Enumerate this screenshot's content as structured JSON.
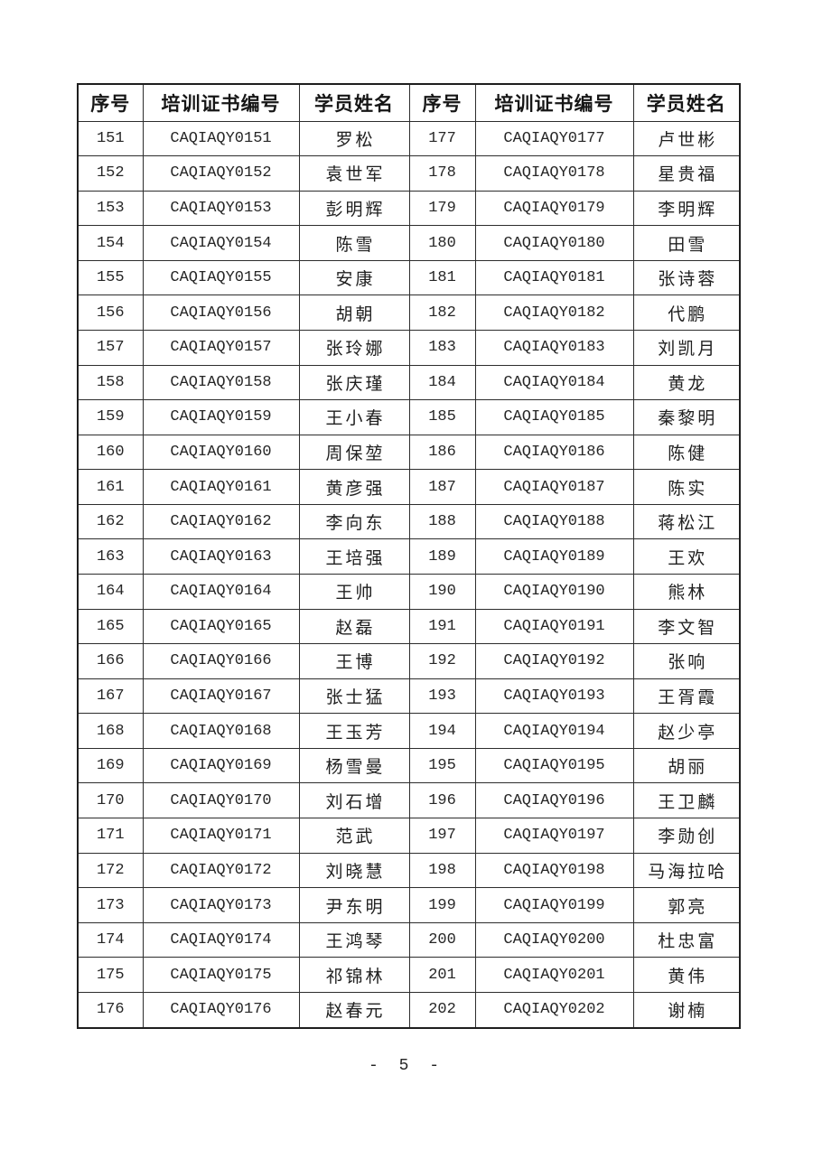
{
  "page": {
    "footer_page_number": "- 5 -"
  },
  "table": {
    "headers": [
      "序号",
      "培训证书编号",
      "学员姓名",
      "序号",
      "培训证书编号",
      "学员姓名"
    ],
    "left_rows": [
      {
        "no": "151",
        "cert": "CAQIAQY0151",
        "name": "罗松"
      },
      {
        "no": "152",
        "cert": "CAQIAQY0152",
        "name": "袁世军"
      },
      {
        "no": "153",
        "cert": "CAQIAQY0153",
        "name": "彭明辉"
      },
      {
        "no": "154",
        "cert": "CAQIAQY0154",
        "name": "陈雪"
      },
      {
        "no": "155",
        "cert": "CAQIAQY0155",
        "name": "安康"
      },
      {
        "no": "156",
        "cert": "CAQIAQY0156",
        "name": "胡朝"
      },
      {
        "no": "157",
        "cert": "CAQIAQY0157",
        "name": "张玲娜"
      },
      {
        "no": "158",
        "cert": "CAQIAQY0158",
        "name": "张庆瑾"
      },
      {
        "no": "159",
        "cert": "CAQIAQY0159",
        "name": "王小春"
      },
      {
        "no": "160",
        "cert": "CAQIAQY0160",
        "name": "周保堃"
      },
      {
        "no": "161",
        "cert": "CAQIAQY0161",
        "name": "黄彦强"
      },
      {
        "no": "162",
        "cert": "CAQIAQY0162",
        "name": "李向东"
      },
      {
        "no": "163",
        "cert": "CAQIAQY0163",
        "name": "王培强"
      },
      {
        "no": "164",
        "cert": "CAQIAQY0164",
        "name": "王帅"
      },
      {
        "no": "165",
        "cert": "CAQIAQY0165",
        "name": "赵磊"
      },
      {
        "no": "166",
        "cert": "CAQIAQY0166",
        "name": "王博"
      },
      {
        "no": "167",
        "cert": "CAQIAQY0167",
        "name": "张士猛"
      },
      {
        "no": "168",
        "cert": "CAQIAQY0168",
        "name": "王玉芳"
      },
      {
        "no": "169",
        "cert": "CAQIAQY0169",
        "name": "杨雪曼"
      },
      {
        "no": "170",
        "cert": "CAQIAQY0170",
        "name": "刘石增"
      },
      {
        "no": "171",
        "cert": "CAQIAQY0171",
        "name": "范武"
      },
      {
        "no": "172",
        "cert": "CAQIAQY0172",
        "name": "刘晓慧"
      },
      {
        "no": "173",
        "cert": "CAQIAQY0173",
        "name": "尹东明"
      },
      {
        "no": "174",
        "cert": "CAQIAQY0174",
        "name": "王鸿琴"
      },
      {
        "no": "175",
        "cert": "CAQIAQY0175",
        "name": "祁锦林"
      },
      {
        "no": "176",
        "cert": "CAQIAQY0176",
        "name": "赵春元"
      }
    ],
    "right_rows": [
      {
        "no": "177",
        "cert": "CAQIAQY0177",
        "name": "卢世彬"
      },
      {
        "no": "178",
        "cert": "CAQIAQY0178",
        "name": "星贵福"
      },
      {
        "no": "179",
        "cert": "CAQIAQY0179",
        "name": "李明辉"
      },
      {
        "no": "180",
        "cert": "CAQIAQY0180",
        "name": "田雪"
      },
      {
        "no": "181",
        "cert": "CAQIAQY0181",
        "name": "张诗蓉"
      },
      {
        "no": "182",
        "cert": "CAQIAQY0182",
        "name": "代鹏"
      },
      {
        "no": "183",
        "cert": "CAQIAQY0183",
        "name": "刘凯月"
      },
      {
        "no": "184",
        "cert": "CAQIAQY0184",
        "name": "黄龙"
      },
      {
        "no": "185",
        "cert": "CAQIAQY0185",
        "name": "秦黎明"
      },
      {
        "no": "186",
        "cert": "CAQIAQY0186",
        "name": "陈健"
      },
      {
        "no": "187",
        "cert": "CAQIAQY0187",
        "name": "陈实"
      },
      {
        "no": "188",
        "cert": "CAQIAQY0188",
        "name": "蒋松江"
      },
      {
        "no": "189",
        "cert": "CAQIAQY0189",
        "name": "王欢"
      },
      {
        "no": "190",
        "cert": "CAQIAQY0190",
        "name": "熊林"
      },
      {
        "no": "191",
        "cert": "CAQIAQY0191",
        "name": "李文智"
      },
      {
        "no": "192",
        "cert": "CAQIAQY0192",
        "name": "张响"
      },
      {
        "no": "193",
        "cert": "CAQIAQY0193",
        "name": "王胥霞"
      },
      {
        "no": "194",
        "cert": "CAQIAQY0194",
        "name": "赵少亭"
      },
      {
        "no": "195",
        "cert": "CAQIAQY0195",
        "name": "胡丽"
      },
      {
        "no": "196",
        "cert": "CAQIAQY0196",
        "name": "王卫麟"
      },
      {
        "no": "197",
        "cert": "CAQIAQY0197",
        "name": "李勋创"
      },
      {
        "no": "198",
        "cert": "CAQIAQY0198",
        "name": "马海拉哈"
      },
      {
        "no": "199",
        "cert": "CAQIAQY0199",
        "name": "郭亮"
      },
      {
        "no": "200",
        "cert": "CAQIAQY0200",
        "name": "杜忠富"
      },
      {
        "no": "201",
        "cert": "CAQIAQY0201",
        "name": "黄伟"
      },
      {
        "no": "202",
        "cert": "CAQIAQY0202",
        "name": "谢楠"
      }
    ]
  }
}
